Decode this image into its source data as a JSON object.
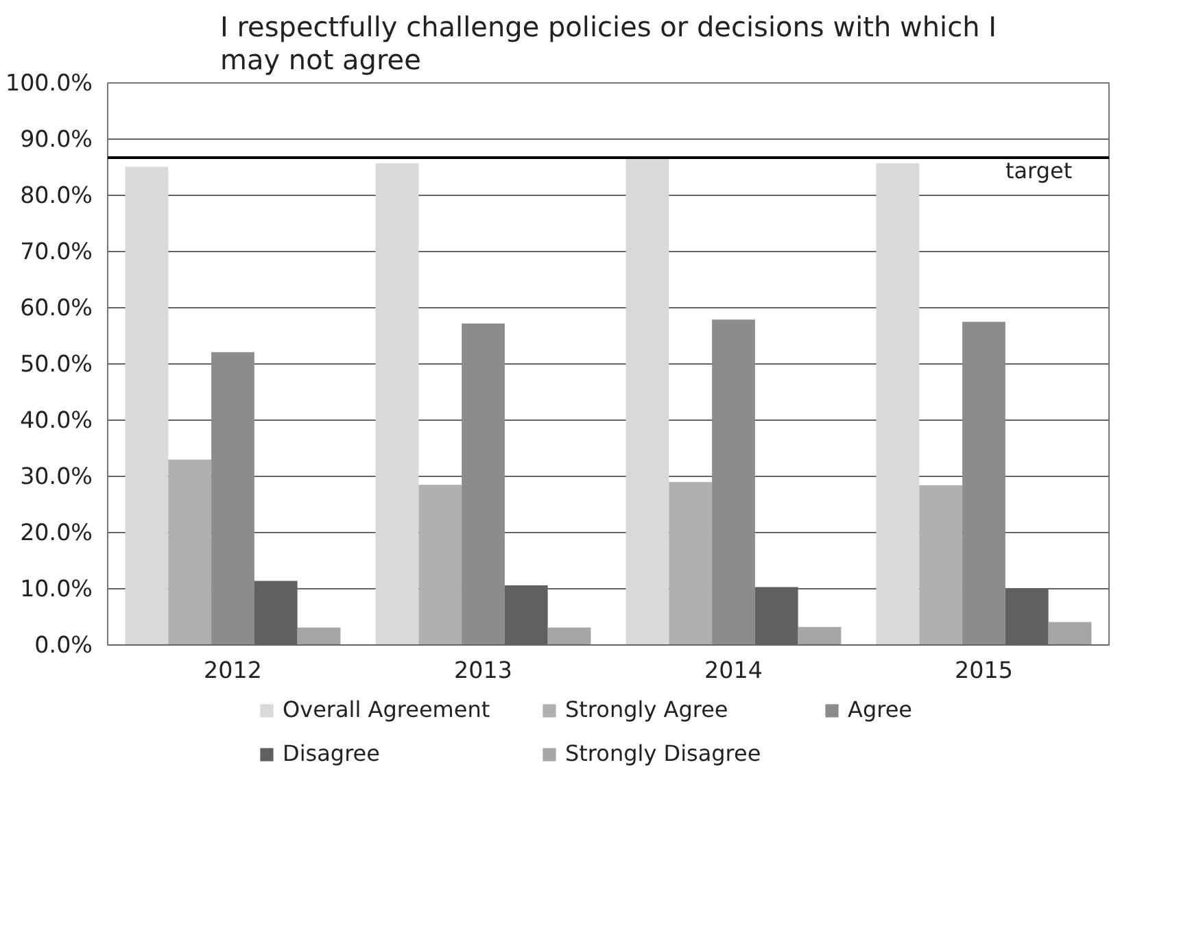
{
  "chart_data": {
    "type": "bar",
    "title": "I respectfully challenge policies or decisions with which I may not agree",
    "categories": [
      "2012",
      "2013",
      "2014",
      "2015"
    ],
    "series": [
      {
        "name": "Overall Agreement",
        "color": "#d9d9d9",
        "values": [
          85.1,
          85.7,
          86.5,
          85.7
        ]
      },
      {
        "name": "Strongly Agree",
        "color": "#b0b0b0",
        "values": [
          33.0,
          28.5,
          29.0,
          28.4
        ]
      },
      {
        "name": "Agree",
        "color": "#8c8c8c",
        "values": [
          52.1,
          57.2,
          57.9,
          57.5
        ]
      },
      {
        "name": "Disagree",
        "color": "#606060",
        "values": [
          11.4,
          10.6,
          10.3,
          10.1
        ]
      },
      {
        "name": "Strongly Disagree",
        "color": "#a6a6a6",
        "values": [
          3.1,
          3.1,
          3.2,
          4.1
        ]
      }
    ],
    "ref_lines": [
      {
        "axis": "y",
        "value": 86.7,
        "label": "target",
        "color": "#000000"
      }
    ],
    "ylim": [
      0,
      100
    ],
    "yticks": [
      {
        "value": 0,
        "label": "0.0%"
      },
      {
        "value": 10,
        "label": "10.0%"
      },
      {
        "value": 20,
        "label": "20.0%"
      },
      {
        "value": 30,
        "label": "30.0%"
      },
      {
        "value": 40,
        "label": "40.0%"
      },
      {
        "value": 50,
        "label": "50.0%"
      },
      {
        "value": 60,
        "label": "60.0%"
      },
      {
        "value": 70,
        "label": "70.0%"
      },
      {
        "value": 80,
        "label": "80.0%"
      },
      {
        "value": 90,
        "label": "90.0%"
      },
      {
        "value": 100,
        "label": "100.0%"
      }
    ],
    "grid": "y",
    "legend": "bottom"
  }
}
